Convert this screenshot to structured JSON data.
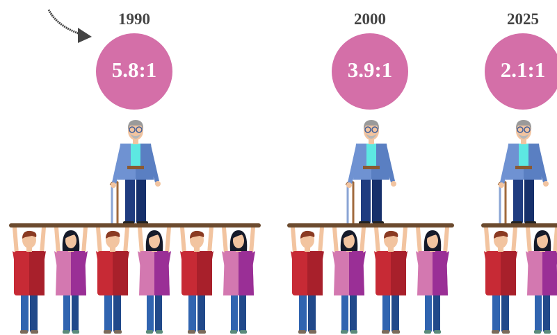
{
  "panels": [
    {
      "year": "1990",
      "ratio": "5.8:1"
    },
    {
      "year": "2000",
      "ratio": "3.9:1"
    },
    {
      "year": "2025",
      "ratio": "2.1:1"
    }
  ]
}
